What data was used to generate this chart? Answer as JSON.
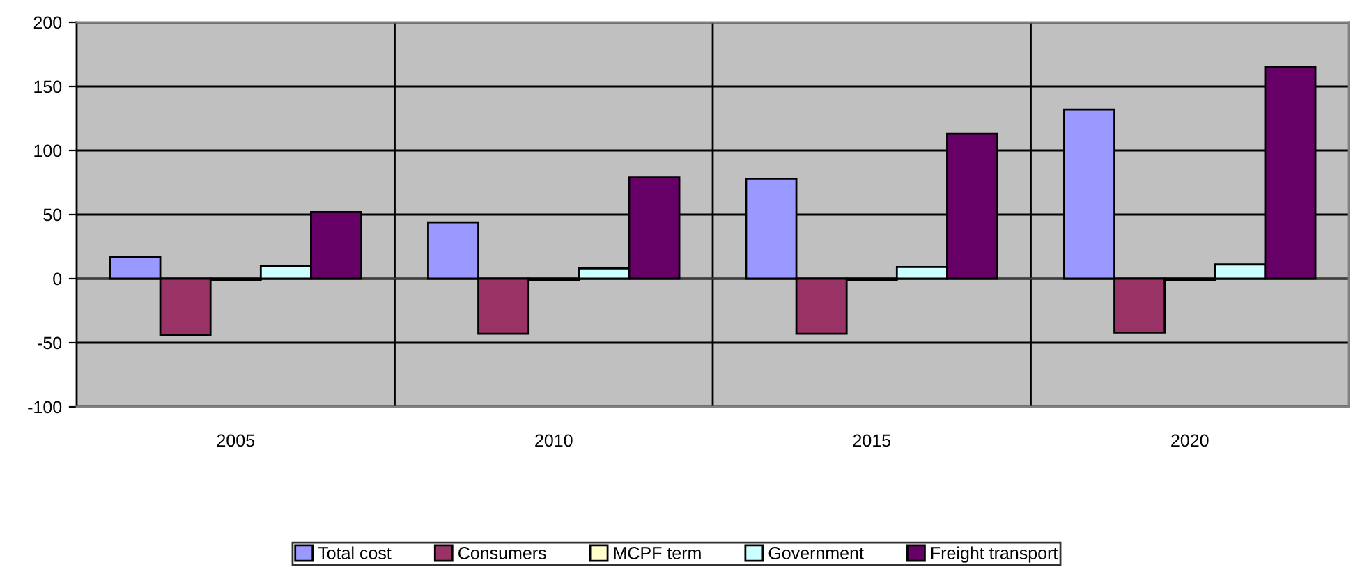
{
  "chart_data": {
    "type": "bar",
    "categories": [
      "2005",
      "2010",
      "2015",
      "2020"
    ],
    "series": [
      {
        "name": "Total cost",
        "color": "#9999ff",
        "values": [
          17,
          44,
          78,
          132
        ]
      },
      {
        "name": "Consumers",
        "color": "#993366",
        "values": [
          -44,
          -43,
          -43,
          -42
        ]
      },
      {
        "name": "MCPF term",
        "color": "#ffffcc",
        "values": [
          -1,
          -1,
          -1,
          -1
        ]
      },
      {
        "name": "Government",
        "color": "#ccffff",
        "values": [
          10,
          8,
          9,
          11
        ]
      },
      {
        "name": "Freight transport",
        "color": "#660066",
        "values": [
          52,
          79,
          113,
          165
        ]
      }
    ],
    "ylim": [
      -100,
      200
    ],
    "yticks": [
      -100,
      -50,
      0,
      50,
      100,
      150,
      200
    ],
    "grid": true,
    "legend": "bottom"
  }
}
